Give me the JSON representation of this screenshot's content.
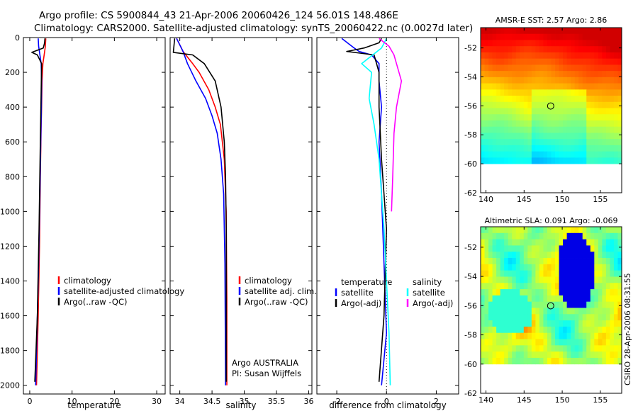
{
  "title_line1": "Argo profile: CS 5900844_43 21-Apr-2006 20060426_124 56.01S 148.486E",
  "title_line2": "Climatology: CARS2000. Satellite-adjusted climatology: synTS_20060422.nc (0.0027d later)",
  "footer_stamp": "CSIRO 28-Apr-2006 08:31:55",
  "colors": {
    "climatology": "#ff0000",
    "satellite": "#0000ff",
    "argo": "#000000",
    "cyan": "#00ffff",
    "magenta": "#ff00ff"
  },
  "chart_data": [
    {
      "type": "line",
      "name": "temperature",
      "xlabel": "temperature",
      "xlim": [
        -1.5,
        32
      ],
      "ylim": [
        2050,
        0
      ],
      "xticks": [
        0,
        10,
        20,
        30
      ],
      "xtick_labels": [
        "0",
        "10",
        "20",
        "30"
      ],
      "yticks": [
        0,
        200,
        400,
        600,
        800,
        1000,
        1200,
        1400,
        1600,
        1800,
        2000
      ],
      "ytick_labels": [
        "0",
        "200",
        "400",
        "600",
        "800",
        "1000",
        "1200",
        "1400",
        "1600",
        "1800",
        "2000"
      ],
      "legend": [
        "climatology",
        "satellite-adjusted climatology",
        "Argo(..raw -QC)"
      ],
      "series": [
        {
          "name": "climatology",
          "color": "#ff0000",
          "x": [
            3.8,
            3.7,
            3.4,
            3.1,
            2.9,
            2.8,
            2.7,
            2.5,
            2.3,
            2.0,
            1.6
          ],
          "y": [
            5,
            50,
            100,
            150,
            250,
            400,
            500,
            800,
            1200,
            1600,
            2000
          ]
        },
        {
          "name": "satellite",
          "color": "#0000ff",
          "x": [
            2.0,
            2.1,
            2.4,
            2.7,
            2.8,
            2.75,
            2.6,
            2.4,
            2.1,
            1.7,
            1.4
          ],
          "y": [
            5,
            50,
            100,
            150,
            250,
            400,
            600,
            900,
            1300,
            1700,
            2000
          ]
        },
        {
          "name": "Argo",
          "color": "#000000",
          "x": [
            3.6,
            3.5,
            3.2,
            0.5,
            1.8,
            2.8,
            2.7,
            2.5,
            2.2,
            1.8,
            1.2
          ],
          "y": [
            5,
            30,
            60,
            85,
            100,
            150,
            300,
            600,
            1100,
            1600,
            1980
          ]
        }
      ]
    },
    {
      "type": "line",
      "name": "salinity",
      "xlabel": "salinity",
      "xlim": [
        33.85,
        36.05
      ],
      "ylim": [
        2050,
        0
      ],
      "xticks": [
        34,
        34.5,
        35,
        35.5,
        36
      ],
      "xtick_labels": [
        "34",
        "34.5",
        "35",
        "35.5",
        "36"
      ],
      "legend": [
        "climatology",
        "satellite adj. clim.",
        "Argo(..raw -QC)"
      ],
      "annotations": [
        "Argo AUSTRALIA",
        "PI: Susan Wijffels"
      ],
      "series": [
        {
          "name": "climatology",
          "color": "#ff0000",
          "x": [
            33.95,
            34.05,
            34.2,
            34.3,
            34.45,
            34.55,
            34.63,
            34.69,
            34.72,
            34.73,
            34.73
          ],
          "y": [
            5,
            80,
            150,
            200,
            300,
            400,
            500,
            700,
            1000,
            1500,
            2000
          ]
        },
        {
          "name": "satellite",
          "color": "#0000ff",
          "x": [
            33.95,
            34.05,
            34.12,
            34.25,
            34.4,
            34.5,
            34.58,
            34.64,
            34.68,
            34.7,
            34.71
          ],
          "y": [
            5,
            80,
            150,
            250,
            350,
            450,
            550,
            700,
            900,
            1300,
            2000
          ]
        },
        {
          "name": "Argo",
          "color": "#000000",
          "x": [
            33.92,
            33.9,
            34.2,
            34.38,
            34.55,
            34.64,
            34.69,
            34.71,
            34.72,
            34.72
          ],
          "y": [
            5,
            85,
            100,
            150,
            250,
            400,
            600,
            800,
            1100,
            1980
          ]
        }
      ]
    },
    {
      "type": "line",
      "name": "difference",
      "xlabel": "difference from climatology",
      "xlim": [
        -2.8,
        2.9
      ],
      "ylim": [
        2050,
        0
      ],
      "xticks": [
        -2,
        0,
        2
      ],
      "xtick_labels": [
        "-2",
        "0",
        "2"
      ],
      "legend_headers": [
        "temperature",
        "salinity"
      ],
      "legend": [
        "satellite",
        "Argo(-adj)",
        "satellite",
        "Argo(-adj)"
      ],
      "series": [
        {
          "name": "temperature satellite",
          "color": "#0000ff",
          "x": [
            -1.8,
            -1.3,
            -1.1,
            -0.6,
            -0.3,
            -0.3,
            -0.2,
            -0.3,
            -0.2,
            -0.1,
            0.0,
            -0.2
          ],
          "y": [
            5,
            60,
            80,
            100,
            150,
            250,
            400,
            600,
            900,
            1300,
            1700,
            2000
          ]
        },
        {
          "name": "temperature Argo",
          "color": "#000000",
          "x": [
            -0.2,
            -0.3,
            -0.9,
            -1.6,
            -0.5,
            -0.3,
            -0.3,
            -0.2,
            0.0,
            -0.1,
            -0.3
          ],
          "y": [
            5,
            30,
            60,
            80,
            100,
            200,
            400,
            700,
            1100,
            1600,
            1980
          ]
        },
        {
          "name": "salinity satellite",
          "color": "#00ffff",
          "x": [
            0.0,
            -0.2,
            -1.0,
            -0.6,
            -0.7,
            -0.5,
            -0.3,
            -0.2,
            -0.1,
            0.0,
            0.1,
            0.15
          ],
          "y": [
            5,
            60,
            150,
            200,
            350,
            500,
            700,
            900,
            1100,
            1400,
            1700,
            2000
          ]
        },
        {
          "name": "salinity Argo",
          "color": "#ff00ff",
          "x": [
            -0.3,
            0.1,
            0.3,
            0.4,
            0.6,
            0.4,
            0.3,
            0.25,
            0.2
          ],
          "y": [
            5,
            50,
            100,
            150,
            250,
            400,
            550,
            800,
            1000
          ]
        }
      ]
    },
    {
      "type": "heatmap",
      "name": "sst_map",
      "title": "AMSR-E SST: 2.57  Argo: 2.86",
      "xlim": [
        139.3,
        157.8
      ],
      "ylim": [
        -62,
        -50.6
      ],
      "data_bottom": -60,
      "xticks": [
        140,
        145,
        150,
        155
      ],
      "xtick_labels": [
        "140",
        "145",
        "150",
        "155"
      ],
      "yticks": [
        -52,
        -54,
        -56,
        -58,
        -60,
        -62
      ],
      "ytick_labels": [
        "-52",
        "-54",
        "-56",
        "-58",
        "-60",
        "-62"
      ],
      "marker": {
        "lon": 148.486,
        "lat": -56.01
      }
    },
    {
      "type": "heatmap",
      "name": "sla_map",
      "title": "Altimetric SLA: 0.091  Argo: -0.069",
      "xlim": [
        139.3,
        157.8
      ],
      "ylim": [
        -62,
        -50.6
      ],
      "data_bottom": -60,
      "xticks": [
        140,
        145,
        150,
        155
      ],
      "xtick_labels": [
        "140",
        "145",
        "150",
        "155"
      ],
      "yticks": [
        -52,
        -54,
        -56,
        -58,
        -60,
        -62
      ],
      "ytick_labels": [
        "-52",
        "-54",
        "-56",
        "-58",
        "-60",
        "-62"
      ],
      "marker": {
        "lon": 148.486,
        "lat": -56.01
      }
    }
  ]
}
